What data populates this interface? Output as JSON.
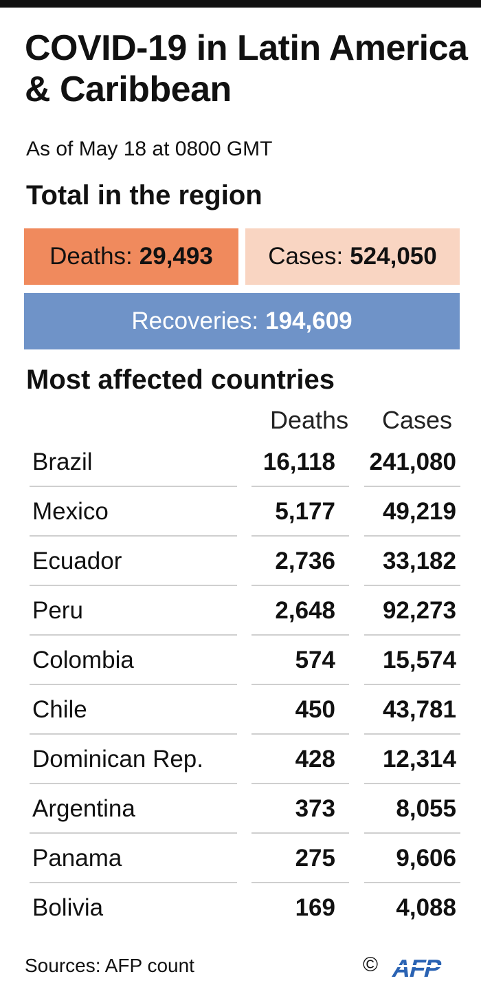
{
  "title": "COVID-19 in Latin America & Caribbean",
  "subtitle": "As of May 18 at 0800 GMT",
  "region": {
    "heading": "Total in the region",
    "deaths_label": "Deaths:",
    "deaths_value": "29,493",
    "cases_label": "Cases:",
    "cases_value": "524,050",
    "recoveries_label": "Recoveries:",
    "recoveries_value": "194,609"
  },
  "table": {
    "heading": "Most affected countries",
    "col_deaths": "Deaths",
    "col_cases": "Cases"
  },
  "colors": {
    "deaths": "#f08a5d",
    "cases": "#f9d5c2",
    "recoveries": "#6f93c8",
    "logo": "#2a63b3"
  },
  "footer": {
    "sources": "Sources: AFP count",
    "copyright": "©",
    "logo_text": "AFP"
  },
  "chart_data": {
    "type": "table",
    "title": "Most affected countries",
    "columns": [
      "Deaths",
      "Cases"
    ],
    "rows": [
      {
        "country": "Brazil",
        "deaths": "16,118",
        "cases": "241,080"
      },
      {
        "country": "Mexico",
        "deaths": "5,177",
        "cases": "49,219"
      },
      {
        "country": "Ecuador",
        "deaths": "2,736",
        "cases": "33,182"
      },
      {
        "country": "Peru",
        "deaths": "2,648",
        "cases": "92,273"
      },
      {
        "country": "Colombia",
        "deaths": "574",
        "cases": "15,574"
      },
      {
        "country": "Chile",
        "deaths": "450",
        "cases": "43,781"
      },
      {
        "country": "Dominican Rep.",
        "deaths": "428",
        "cases": "12,314"
      },
      {
        "country": "Argentina",
        "deaths": "373",
        "cases": "8,055"
      },
      {
        "country": "Panama",
        "deaths": "275",
        "cases": "9,606"
      },
      {
        "country": "Bolivia",
        "deaths": "169",
        "cases": "4,088"
      }
    ]
  }
}
